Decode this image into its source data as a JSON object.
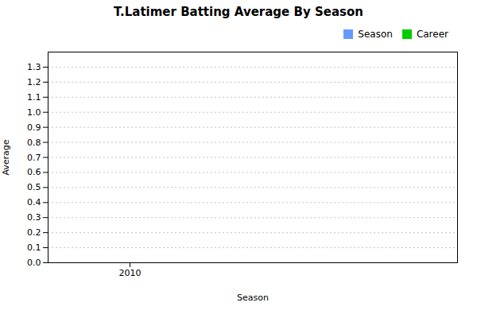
{
  "chart_data": {
    "type": "line",
    "title": "T.Latimer Batting Average By Season",
    "xlabel": "Season",
    "ylabel": "Average",
    "x": [],
    "series": [
      {
        "name": "Season",
        "color": "#6699FF",
        "values": []
      },
      {
        "name": "Career",
        "color": "#00CC00",
        "values": []
      }
    ],
    "xlim": [
      2009.5,
      2012.0
    ],
    "xticks": [
      2010
    ],
    "ylim": [
      0,
      1.4
    ],
    "yticks": [
      {
        "value": 0.0,
        "label": "0.0"
      },
      0.1,
      0.2,
      0.3,
      0.4,
      0.5,
      0.6,
      0.7,
      0.8,
      0.9,
      {
        "value": 1.0,
        "label": "1.0"
      },
      1.1,
      1.2,
      1.3
    ],
    "grid": "y",
    "legend": "upper right"
  }
}
